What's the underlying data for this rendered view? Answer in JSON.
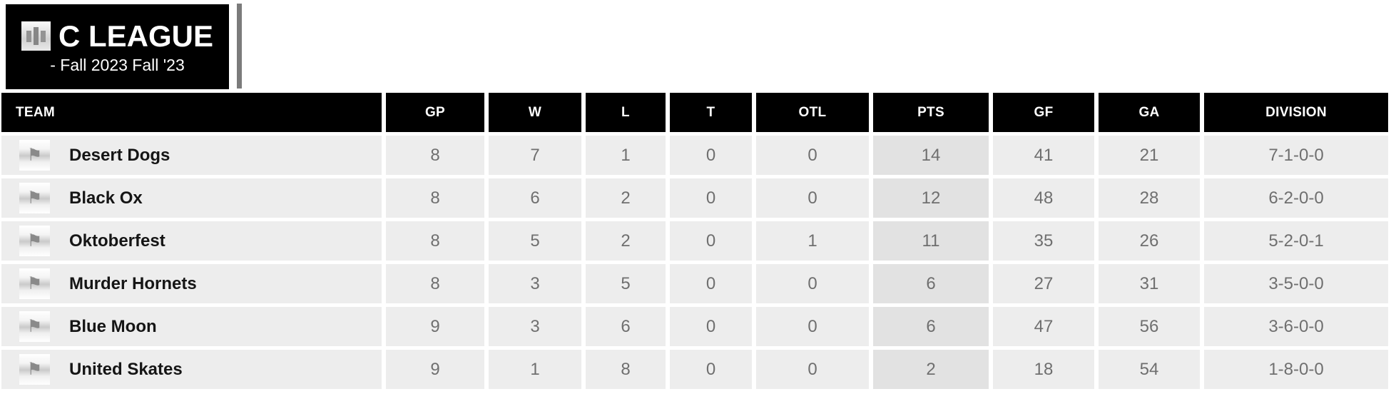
{
  "league": {
    "name": "C LEAGUE",
    "season": "- Fall 2023 Fall '23"
  },
  "icons": {
    "league_badge": "stats-bars-icon",
    "team_flag_glyph": "⚑"
  },
  "colors": {
    "header_bg": "#000000",
    "header_text": "#ffffff",
    "row_bg": "#ededed",
    "pts_column_bg": "#e2e2e2",
    "stat_text": "#6f6f6f",
    "team_text": "#151515",
    "accent_bar": "#7b7b7b"
  },
  "table": {
    "columns": [
      {
        "key": "team",
        "label": "TEAM"
      },
      {
        "key": "gp",
        "label": "GP"
      },
      {
        "key": "w",
        "label": "W"
      },
      {
        "key": "l",
        "label": "L"
      },
      {
        "key": "t",
        "label": "T"
      },
      {
        "key": "otl",
        "label": "OTL"
      },
      {
        "key": "pts",
        "label": "PTS"
      },
      {
        "key": "gf",
        "label": "GF"
      },
      {
        "key": "ga",
        "label": "GA"
      },
      {
        "key": "division",
        "label": "DIVISION"
      }
    ],
    "rows": [
      {
        "team": "Desert Dogs",
        "gp": "8",
        "w": "7",
        "l": "1",
        "t": "0",
        "otl": "0",
        "pts": "14",
        "gf": "41",
        "ga": "21",
        "division": "7-1-0-0"
      },
      {
        "team": "Black Ox",
        "gp": "8",
        "w": "6",
        "l": "2",
        "t": "0",
        "otl": "0",
        "pts": "12",
        "gf": "48",
        "ga": "28",
        "division": "6-2-0-0"
      },
      {
        "team": "Oktoberfest",
        "gp": "8",
        "w": "5",
        "l": "2",
        "t": "0",
        "otl": "1",
        "pts": "11",
        "gf": "35",
        "ga": "26",
        "division": "5-2-0-1"
      },
      {
        "team": "Murder Hornets",
        "gp": "8",
        "w": "3",
        "l": "5",
        "t": "0",
        "otl": "0",
        "pts": "6",
        "gf": "27",
        "ga": "31",
        "division": "3-5-0-0"
      },
      {
        "team": "Blue Moon",
        "gp": "9",
        "w": "3",
        "l": "6",
        "t": "0",
        "otl": "0",
        "pts": "6",
        "gf": "47",
        "ga": "56",
        "division": "3-6-0-0"
      },
      {
        "team": "United Skates",
        "gp": "9",
        "w": "1",
        "l": "8",
        "t": "0",
        "otl": "0",
        "pts": "2",
        "gf": "18",
        "ga": "54",
        "division": "1-8-0-0"
      }
    ]
  }
}
